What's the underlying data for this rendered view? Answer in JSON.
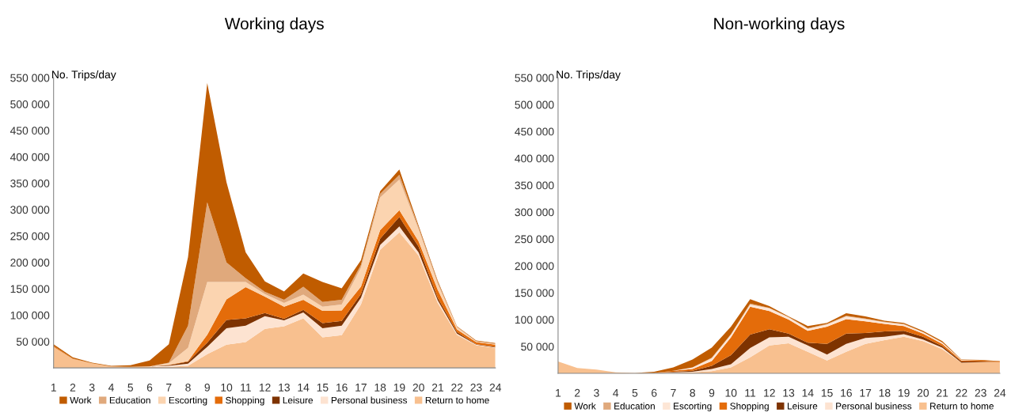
{
  "chart_data": [
    {
      "type": "area",
      "title": "Working days",
      "ylabel": "No. Trips/day",
      "stacked": true,
      "legend": "bottom",
      "x": [
        1,
        2,
        3,
        4,
        5,
        6,
        7,
        8,
        9,
        10,
        11,
        12,
        13,
        14,
        15,
        16,
        17,
        18,
        19,
        20,
        21,
        22,
        23,
        24
      ],
      "xlim": [
        1,
        24
      ],
      "xticks": [
        1,
        2,
        3,
        4,
        5,
        6,
        7,
        8,
        9,
        10,
        11,
        12,
        13,
        14,
        15,
        16,
        17,
        18,
        19,
        20,
        21,
        22,
        23,
        24
      ],
      "ylim": [
        0,
        550000
      ],
      "yticks": [
        {
          "value": 50000,
          "label": "50 000"
        },
        {
          "value": 100000,
          "label": "100 000"
        },
        {
          "value": 150000,
          "label": "150 000"
        },
        {
          "value": 200000,
          "label": "200 000"
        },
        {
          "value": 250000,
          "label": "250 000"
        },
        {
          "value": 300000,
          "label": "300 000"
        },
        {
          "value": 350000,
          "label": "350 000"
        },
        {
          "value": 400000,
          "label": "400 000"
        },
        {
          "value": 450000,
          "label": "450 000"
        },
        {
          "value": 500000,
          "label": "500 000"
        },
        {
          "value": 550000,
          "label": "550 000"
        }
      ],
      "series": [
        {
          "name": "Return to home",
          "color": "#f8c08f",
          "values": [
            40000,
            17000,
            9000,
            3000,
            2000,
            2000,
            2000,
            4000,
            26000,
            44000,
            49000,
            74000,
            79000,
            94000,
            58000,
            62000,
            120000,
            224000,
            257000,
            213000,
            123000,
            63000,
            43000,
            38000
          ]
        },
        {
          "name": "Personal business",
          "color": "#fde3d1",
          "values": [
            0,
            0,
            0,
            0,
            0,
            1000,
            2000,
            4000,
            14000,
            31000,
            31000,
            24000,
            11000,
            11000,
            17000,
            18000,
            13000,
            9000,
            11000,
            6000,
            5000,
            2000,
            1000,
            1000
          ]
        },
        {
          "name": "Leisure",
          "color": "#7e3300",
          "values": [
            0,
            0,
            0,
            0,
            0,
            0,
            1000,
            4000,
            8000,
            16000,
            14000,
            6000,
            3000,
            5000,
            10000,
            9000,
            7000,
            12000,
            18000,
            11000,
            5000,
            3000,
            1000,
            1000
          ]
        },
        {
          "name": "Shopping",
          "color": "#e46c0a",
          "values": [
            2000,
            1000,
            0,
            0,
            0,
            0,
            1000,
            1000,
            15000,
            39000,
            59000,
            31000,
            23000,
            19000,
            23000,
            20000,
            14000,
            16000,
            13000,
            10000,
            15000,
            5000,
            4000,
            4000
          ]
        },
        {
          "name": "Escorting",
          "color": "#fbd4b0",
          "values": [
            0,
            0,
            0,
            0,
            0,
            0,
            3000,
            25000,
            100000,
            33000,
            10000,
            5000,
            7000,
            10000,
            8000,
            11000,
            36000,
            62000,
            58000,
            23000,
            11000,
            4000,
            1000,
            1000
          ]
        },
        {
          "name": "Education",
          "color": "#e0a97c",
          "values": [
            0,
            0,
            0,
            0,
            0,
            0,
            1000,
            42000,
            151000,
            37000,
            7000,
            4000,
            6000,
            15000,
            9000,
            9000,
            5000,
            7000,
            9000,
            4000,
            4000,
            1000,
            1000,
            1000
          ]
        },
        {
          "name": "Work",
          "color": "#c05c00",
          "values": [
            3000,
            2000,
            1000,
            1000,
            3000,
            11000,
            35000,
            130000,
            226000,
            152000,
            49000,
            20000,
            16000,
            25000,
            38000,
            22000,
            9000,
            5000,
            10000,
            3000,
            2000,
            1000,
            1000,
            1000
          ]
        }
      ]
    },
    {
      "type": "area",
      "title": "Non-working days",
      "ylabel": "No. Trips/day",
      "stacked": true,
      "legend": "bottom",
      "x": [
        1,
        2,
        3,
        4,
        5,
        6,
        7,
        8,
        9,
        10,
        11,
        12,
        13,
        14,
        15,
        16,
        17,
        18,
        19,
        20,
        21,
        22,
        23,
        24
      ],
      "xlim": [
        1,
        24
      ],
      "xticks": [
        1,
        2,
        3,
        4,
        5,
        6,
        7,
        8,
        9,
        10,
        11,
        12,
        13,
        14,
        15,
        16,
        17,
        18,
        19,
        20,
        21,
        22,
        23,
        24
      ],
      "ylim": [
        0,
        550000
      ],
      "yticks": [
        {
          "value": 50000,
          "label": "50 000"
        },
        {
          "value": 100000,
          "label": "100 000"
        },
        {
          "value": 150000,
          "label": "150 000"
        },
        {
          "value": 200000,
          "label": "200 000"
        },
        {
          "value": 250000,
          "label": "250 000"
        },
        {
          "value": 300000,
          "label": "300 000"
        },
        {
          "value": 350000,
          "label": "350 000"
        },
        {
          "value": 400000,
          "label": "400 000"
        },
        {
          "value": 450000,
          "label": "450 000"
        },
        {
          "value": 500000,
          "label": "500 000"
        },
        {
          "value": 550000,
          "label": "550 000"
        }
      ],
      "series": [
        {
          "name": "Return to home",
          "color": "#f8c08f",
          "values": [
            22000,
            10000,
            7000,
            2000,
            1000,
            1000,
            1000,
            2000,
            4000,
            11000,
            30000,
            52000,
            56000,
            40000,
            24000,
            40000,
            55000,
            62000,
            68000,
            60000,
            45000,
            20000,
            21000,
            21000
          ]
        },
        {
          "name": "Personal business",
          "color": "#fde3d1",
          "values": [
            0,
            0,
            0,
            0,
            0,
            0,
            1000,
            1000,
            4000,
            6000,
            17000,
            15000,
            12000,
            12000,
            11000,
            15000,
            11000,
            6000,
            5000,
            3000,
            3000,
            0,
            0,
            0
          ]
        },
        {
          "name": "Leisure",
          "color": "#7e3300",
          "values": [
            0,
            0,
            0,
            0,
            0,
            0,
            1000,
            2000,
            6000,
            17000,
            25000,
            15000,
            6000,
            5000,
            20000,
            19000,
            9000,
            10000,
            6000,
            5000,
            3000,
            2000,
            1000,
            0
          ]
        },
        {
          "name": "Shopping",
          "color": "#e46c0a",
          "values": [
            0,
            0,
            0,
            0,
            0,
            0,
            2000,
            3000,
            9000,
            33000,
            52000,
            34000,
            26000,
            22000,
            32000,
            27000,
            22000,
            14000,
            9000,
            6000,
            4000,
            2000,
            2000,
            1000
          ]
        },
        {
          "name": "Escorting",
          "color": "#fde6d6",
          "values": [
            0,
            0,
            0,
            0,
            0,
            0,
            0,
            3000,
            5000,
            5000,
            4000,
            5000,
            4000,
            4000,
            4000,
            5000,
            4000,
            3000,
            3000,
            3000,
            2000,
            1000,
            0,
            0
          ]
        },
        {
          "name": "Education",
          "color": "#e0a97c",
          "values": [
            0,
            0,
            0,
            0,
            0,
            0,
            0,
            0,
            1000,
            1000,
            2000,
            1000,
            1000,
            1000,
            1000,
            1000,
            1000,
            1000,
            1000,
            0,
            1000,
            0,
            0,
            0
          ]
        },
        {
          "name": "Work",
          "color": "#c05c00",
          "values": [
            0,
            0,
            0,
            0,
            0,
            2000,
            6000,
            15000,
            19000,
            14000,
            8000,
            3000,
            1000,
            4000,
            2000,
            5000,
            4000,
            2000,
            2000,
            2000,
            2000,
            1000,
            1000,
            1000
          ]
        }
      ]
    }
  ]
}
